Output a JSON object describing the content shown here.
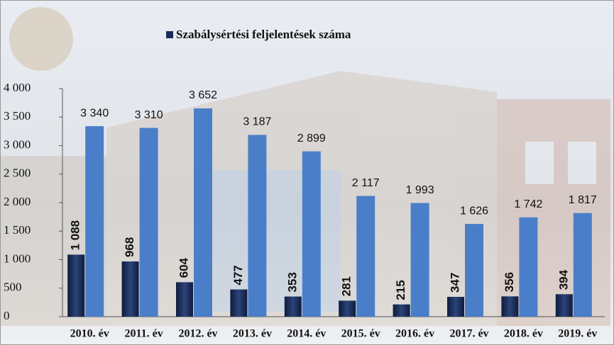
{
  "chart_data": {
    "type": "bar",
    "categories": [
      "2010. év",
      "2011. év",
      "2012. év",
      "2013. év",
      "2014. év",
      "2015. év",
      "2016. év",
      "2017. év",
      "2018. év",
      "2019. év"
    ],
    "series": [
      {
        "name": "Szabálysértési feljelentések száma",
        "color": "#1a2b55",
        "values": [
          1088,
          968,
          604,
          477,
          353,
          281,
          215,
          347,
          356,
          394
        ],
        "value_labels": [
          "1 088",
          "968",
          "604",
          "477",
          "353",
          "281",
          "215",
          "347",
          "356",
          "394"
        ]
      },
      {
        "color": "#4a7ec8",
        "values": [
          3340,
          3310,
          3652,
          3187,
          2899,
          2117,
          1993,
          1626,
          1742,
          1817
        ],
        "value_labels": [
          "3 340",
          "3 310",
          "3 652",
          "3 187",
          "2 899",
          "2 117",
          "1 993",
          "1 626",
          "1 742",
          "1 817"
        ]
      }
    ],
    "ylim": [
      0,
      4000
    ],
    "yticks": [
      0,
      500,
      {
        "value": 1000,
        "label": "1 000"
      },
      {
        "value": 1500,
        "label": "1 500"
      },
      {
        "value": 2000,
        "label": "2 000"
      },
      {
        "value": 2500,
        "label": "2 500"
      },
      {
        "value": 3000,
        "label": "3 000"
      },
      {
        "value": 3500,
        "label": "3 500"
      },
      {
        "value": 4000,
        "label": "4 000"
      }
    ],
    "grid": false
  }
}
